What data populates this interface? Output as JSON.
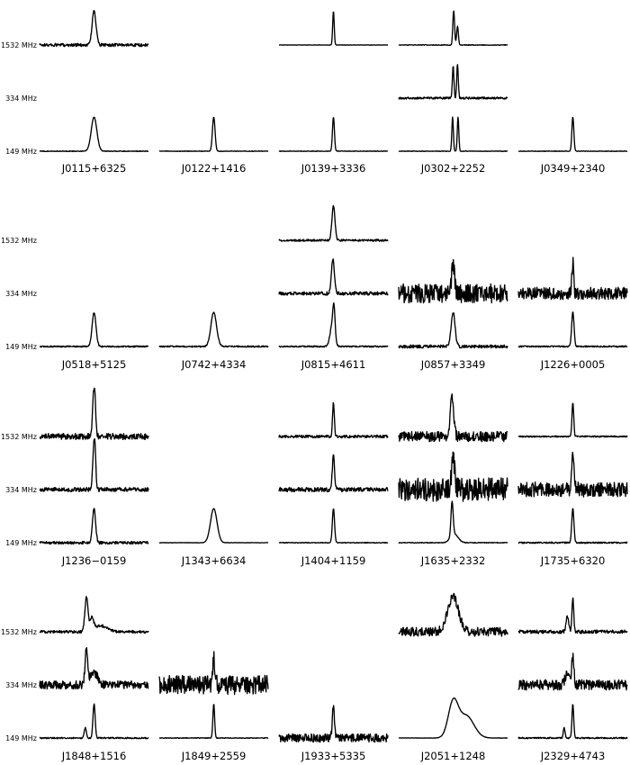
{
  "chart_data": {
    "type": "line",
    "frequencies": [
      "1532 MHz",
      "334 MHz",
      "149 MHz"
    ],
    "groups": [
      {
        "pulsars": [
          {
            "name": "J0115+6325",
            "profiles": {
              "1532 MHz": {
                "components": [
                  {
                    "center": 0.5,
                    "width": 0.018,
                    "amp": 1
                  }
                ],
                "noise": 0.045
              },
              "149 MHz": {
                "components": [
                  {
                    "center": 0.5,
                    "width": 0.026,
                    "amp": 1
                  }
                ],
                "noise": 0.01
              }
            }
          },
          {
            "name": "J0122+1416",
            "profiles": {
              "149 MHz": {
                "components": [
                  {
                    "center": 0.5,
                    "width": 0.012,
                    "amp": 1
                  }
                ],
                "noise": 0.008
              }
            }
          },
          {
            "name": "J0139+3336",
            "profiles": {
              "1532 MHz": {
                "components": [
                  {
                    "center": 0.5,
                    "width": 0.007,
                    "amp": 1
                  }
                ],
                "noise": 0.005
              },
              "149 MHz": {
                "components": [
                  {
                    "center": 0.5,
                    "width": 0.009,
                    "amp": 1
                  }
                ],
                "noise": 0.008
              }
            }
          },
          {
            "name": "J0302+2252",
            "profiles": {
              "1532 MHz": {
                "components": [
                  {
                    "center": 0.505,
                    "width": 0.008,
                    "amp": 1
                  },
                  {
                    "center": 0.54,
                    "width": 0.008,
                    "amp": 0.55
                  }
                ],
                "noise": 0.01
              },
              "334 MHz": {
                "components": [
                  {
                    "center": 0.5,
                    "width": 0.007,
                    "amp": 0.95
                  },
                  {
                    "center": 0.54,
                    "width": 0.007,
                    "amp": 1
                  }
                ],
                "noise": 0.03
              },
              "149 MHz": {
                "components": [
                  {
                    "center": 0.495,
                    "width": 0.007,
                    "amp": 1
                  },
                  {
                    "center": 0.545,
                    "width": 0.007,
                    "amp": 1
                  }
                ],
                "noise": 0.008
              }
            }
          },
          {
            "name": "J0349+2340",
            "profiles": {
              "149 MHz": {
                "components": [
                  {
                    "center": 0.5,
                    "width": 0.009,
                    "amp": 1
                  }
                ],
                "noise": 0.008
              }
            }
          }
        ]
      },
      {
        "pulsars": [
          {
            "name": "J0518+5125",
            "profiles": {
              "149 MHz": {
                "components": [
                  {
                    "center": 0.5,
                    "width": 0.018,
                    "amp": 1
                  }
                ],
                "noise": 0.02
              }
            }
          },
          {
            "name": "J0742+4334",
            "profiles": {
              "149 MHz": {
                "components": [
                  {
                    "center": 0.5,
                    "width": 0.026,
                    "amp": 1
                  }
                ],
                "noise": 0.02
              }
            }
          },
          {
            "name": "J0815+4611",
            "profiles": {
              "1532 MHz": {
                "components": [
                  {
                    "center": 0.5,
                    "width": 0.014,
                    "amp": 1
                  }
                ],
                "noise": 0.03
              },
              "334 MHz": {
                "components": [
                  {
                    "center": 0.495,
                    "width": 0.014,
                    "amp": 1
                  }
                ],
                "noise": 0.05
              },
              "149 MHz": {
                "components": [
                  {
                    "center": 0.49,
                    "width": 0.02,
                    "amp": 0.65
                  },
                  {
                    "center": 0.505,
                    "width": 0.01,
                    "amp": 0.75
                  }
                ],
                "noise": 0.02
              }
            }
          },
          {
            "name": "J0857+3349",
            "profiles": {
              "334 MHz": {
                "components": [
                  {
                    "center": 0.5,
                    "width": 0.012,
                    "amp": 0.9
                  }
                ],
                "noise": 0.28
              },
              "149 MHz": {
                "components": [
                  {
                    "center": 0.5,
                    "width": 0.018,
                    "amp": 1
                  }
                ],
                "noise": 0.045
              }
            }
          },
          {
            "name": "J1226+0005",
            "profiles": {
              "334 MHz": {
                "components": [
                  {
                    "center": 0.5,
                    "width": 0.008,
                    "amp": 0.9
                  }
                ],
                "noise": 0.18
              },
              "149 MHz": {
                "components": [
                  {
                    "center": 0.5,
                    "width": 0.011,
                    "amp": 1
                  }
                ],
                "noise": 0.02
              }
            }
          }
        ]
      },
      {
        "pulsars": [
          {
            "name": "J1236−0159",
            "profiles": {
              "1532 MHz": {
                "components": [
                  {
                    "center": 0.495,
                    "width": 0.01,
                    "amp": 1
                  },
                  {
                    "center": 0.508,
                    "width": 0.009,
                    "amp": 0.85
                  }
                ],
                "noise": 0.09
              },
              "334 MHz": {
                "components": [
                  {
                    "center": 0.495,
                    "width": 0.01,
                    "amp": 0.9
                  },
                  {
                    "center": 0.508,
                    "width": 0.009,
                    "amp": 1
                  }
                ],
                "noise": 0.06
              },
              "149 MHz": {
                "components": [
                  {
                    "center": 0.5,
                    "width": 0.014,
                    "amp": 1
                  }
                ],
                "noise": 0.04
              }
            }
          },
          {
            "name": "J1343+6634",
            "profiles": {
              "149 MHz": {
                "components": [
                  {
                    "center": 0.5,
                    "width": 0.03,
                    "amp": 1
                  }
                ],
                "noise": 0.005
              }
            }
          },
          {
            "name": "J1404+1159",
            "profiles": {
              "1532 MHz": {
                "components": [
                  {
                    "center": 0.5,
                    "width": 0.008,
                    "amp": 1
                  }
                ],
                "noise": 0.04
              },
              "334 MHz": {
                "components": [
                  {
                    "center": 0.5,
                    "width": 0.01,
                    "amp": 1
                  }
                ],
                "noise": 0.06
              },
              "149 MHz": {
                "components": [
                  {
                    "center": 0.5,
                    "width": 0.01,
                    "amp": 1
                  }
                ],
                "noise": 0.01
              }
            }
          },
          {
            "name": "J1635+2332",
            "profiles": {
              "1532 MHz": {
                "components": [
                  {
                    "center": 0.48,
                    "width": 0.01,
                    "amp": 1
                  },
                  {
                    "center": 0.5,
                    "width": 0.012,
                    "amp": 0.7
                  }
                ],
                "noise": 0.15
              },
              "334 MHz": {
                "components": [
                  {
                    "center": 0.5,
                    "width": 0.015,
                    "amp": 0.9
                  }
                ],
                "noise": 0.35
              },
              "149 MHz": {
                "components": [
                  {
                    "center": 0.49,
                    "width": 0.01,
                    "amp": 1
                  },
                  {
                    "center": 0.51,
                    "width": 0.035,
                    "amp": 0.25
                  }
                ],
                "noise": 0.01
              }
            }
          },
          {
            "name": "J1735+6320",
            "profiles": {
              "1532 MHz": {
                "components": [
                  {
                    "center": 0.5,
                    "width": 0.008,
                    "amp": 1
                  }
                ],
                "noise": 0.02
              },
              "334 MHz": {
                "components": [
                  {
                    "center": 0.5,
                    "width": 0.012,
                    "amp": 0.9
                  }
                ],
                "noise": 0.22
              },
              "149 MHz": {
                "components": [
                  {
                    "center": 0.5,
                    "width": 0.01,
                    "amp": 1
                  }
                ],
                "noise": 0.02
              }
            }
          }
        ]
      },
      {
        "pulsars": [
          {
            "name": "J1848+1516",
            "profiles": {
              "1532 MHz": {
                "components": [
                  {
                    "center": 0.43,
                    "width": 0.014,
                    "amp": 1
                  },
                  {
                    "center": 0.48,
                    "width": 0.016,
                    "amp": 0.35
                  },
                  {
                    "center": 0.56,
                    "width": 0.06,
                    "amp": 0.18
                  }
                ],
                "noise": 0.04
              },
              "334 MHz": {
                "components": [
                  {
                    "center": 0.43,
                    "width": 0.012,
                    "amp": 1
                  },
                  {
                    "center": 0.5,
                    "width": 0.035,
                    "amp": 0.35
                  }
                ],
                "noise": 0.12
              },
              "149 MHz": {
                "components": [
                  {
                    "center": 0.42,
                    "width": 0.01,
                    "amp": 0.3
                  },
                  {
                    "center": 0.5,
                    "width": 0.01,
                    "amp": 1
                  }
                ],
                "noise": 0.02
              }
            }
          },
          {
            "name": "J1849+2559",
            "profiles": {
              "334 MHz": {
                "components": [
                  {
                    "center": 0.5,
                    "width": 0.008,
                    "amp": 0.8
                  }
                ],
                "noise": 0.28
              },
              "149 MHz": {
                "components": [
                  {
                    "center": 0.5,
                    "width": 0.008,
                    "amp": 1
                  }
                ],
                "noise": 0.01
              }
            }
          },
          {
            "name": "J1933+5335",
            "profiles": {
              "149 MHz": {
                "components": [
                  {
                    "center": 0.5,
                    "width": 0.01,
                    "amp": 0.9
                  }
                ],
                "noise": 0.12
              }
            }
          },
          {
            "name": "J2051+1248",
            "profiles": {
              "1532 MHz": {
                "components": [
                  {
                    "center": 0.5,
                    "width": 0.05,
                    "amp": 1
                  }
                ],
                "noise": 0.13
              },
              "149 MHz": {
                "components": [
                  {
                    "center": 0.5,
                    "width": 0.045,
                    "amp": 1
                  },
                  {
                    "center": 0.62,
                    "width": 0.07,
                    "amp": 0.65
                  }
                ],
                "noise": 0.005
              }
            }
          },
          {
            "name": "J2329+4743",
            "profiles": {
              "1532 MHz": {
                "components": [
                  {
                    "center": 0.45,
                    "width": 0.012,
                    "amp": 0.45
                  },
                  {
                    "center": 0.5,
                    "width": 0.008,
                    "amp": 1
                  }
                ],
                "noise": 0.05
              },
              "334 MHz": {
                "components": [
                  {
                    "center": 0.45,
                    "width": 0.02,
                    "amp": 0.35
                  },
                  {
                    "center": 0.5,
                    "width": 0.01,
                    "amp": 0.8
                  }
                ],
                "noise": 0.15
              },
              "149 MHz": {
                "components": [
                  {
                    "center": 0.42,
                    "width": 0.008,
                    "amp": 0.3
                  },
                  {
                    "center": 0.5,
                    "width": 0.008,
                    "amp": 1
                  }
                ],
                "noise": 0.02
              }
            }
          }
        ]
      }
    ],
    "axes": "off",
    "grid": false,
    "line_color": "#000000"
  }
}
